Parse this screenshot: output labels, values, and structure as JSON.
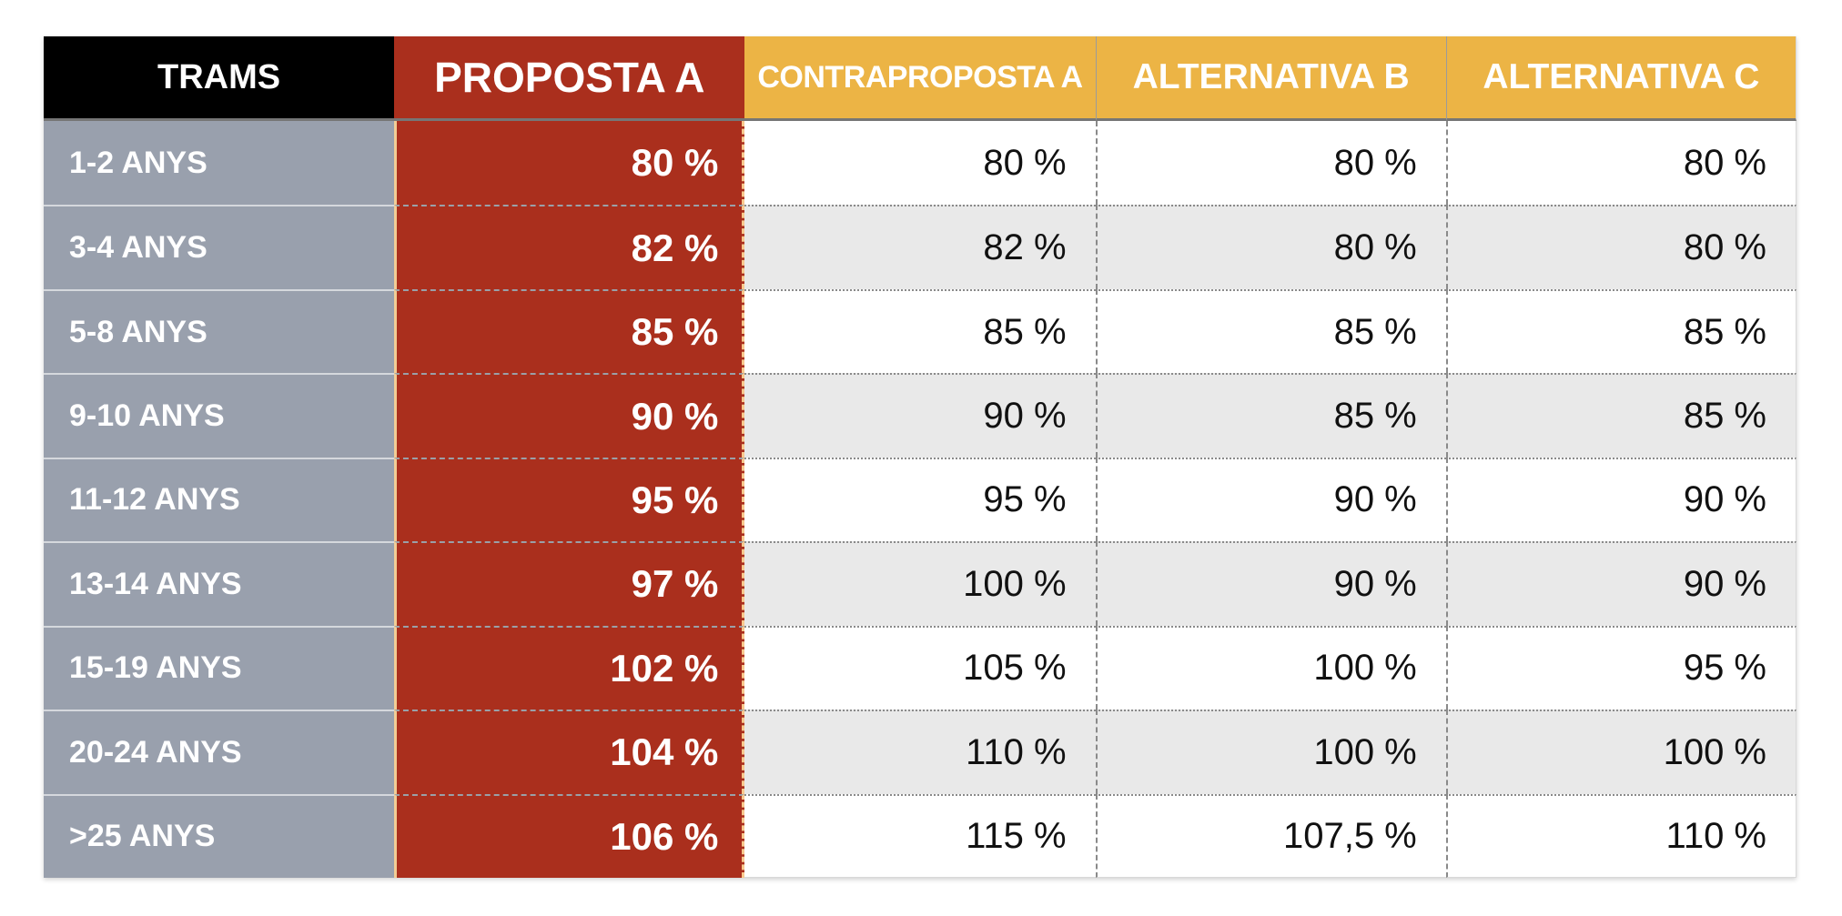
{
  "colors": {
    "header_trams_bg": "#000000",
    "proposta_bg": "#AA2F1D",
    "alternatives_header_bg": "#ECB445",
    "row_label_bg": "#99A0AD",
    "zebra_row_bg": "#E9E9E9",
    "separator_dotted": "#8a8a8a",
    "proposta_edge": "#F2CD96"
  },
  "chart_data": {
    "type": "table",
    "columns": [
      "TRAMS",
      "PROPOSTA A",
      "CONTRAPROPOSTA A",
      "ALTERNATIVA B",
      "ALTERNATIVA C"
    ],
    "rows": [
      [
        "1-2 ANYS",
        "80 %",
        "80 %",
        "80 %",
        "80 %"
      ],
      [
        "3-4 ANYS",
        "82 %",
        "82 %",
        "80 %",
        "80 %"
      ],
      [
        "5-8 ANYS",
        "85 %",
        "85 %",
        "85 %",
        "85 %"
      ],
      [
        "9-10 ANYS",
        "90 %",
        "90 %",
        "85 %",
        "85 %"
      ],
      [
        "11-12 ANYS",
        "95 %",
        "95 %",
        "90 %",
        "90 %"
      ],
      [
        "13-14 ANYS",
        "97 %",
        "100 %",
        "90 %",
        "90 %"
      ],
      [
        "15-19 ANYS",
        "102 %",
        "105 %",
        "100 %",
        "95 %"
      ],
      [
        "20-24 ANYS",
        "104 %",
        "110 %",
        "100 %",
        "100 %"
      ],
      [
        ">25 ANYS",
        "106 %",
        "115 %",
        "107,5 %",
        "110 %"
      ]
    ]
  }
}
